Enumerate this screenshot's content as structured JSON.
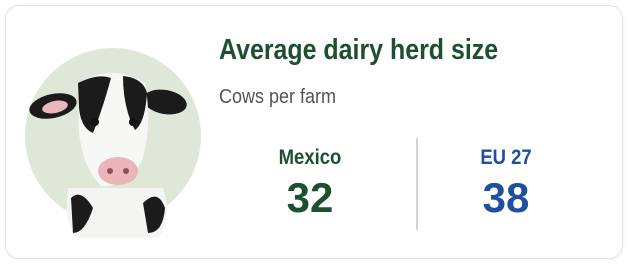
{
  "card": {
    "title": "Average dairy herd size",
    "subtitle": "Cows per farm",
    "stats": [
      {
        "label": "Mexico",
        "value": 32,
        "color": "#1e4f2e"
      },
      {
        "label": "EU 27",
        "value": 38,
        "color": "#1f4f9e"
      }
    ]
  }
}
